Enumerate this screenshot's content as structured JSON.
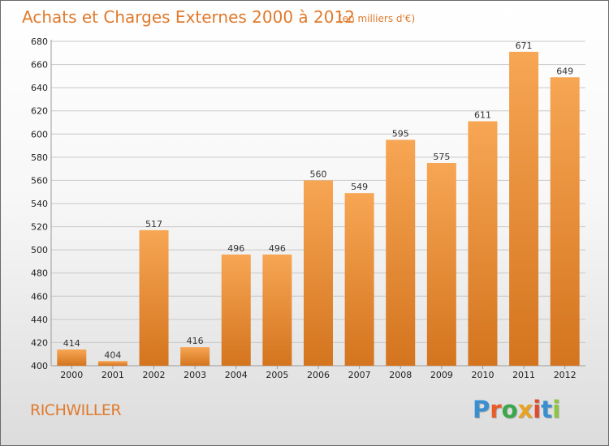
{
  "header": {
    "title": "Achats et Charges Externes 2000 à 2012",
    "subtitle": "(en milliers d'€)"
  },
  "footer": {
    "location": "RICHWILLER",
    "brand_letters": [
      "P",
      "r",
      "o",
      "x",
      "i",
      "t",
      "i"
    ],
    "brand_colors": [
      "#3a8fd1",
      "#e85c2a",
      "#3aa84a",
      "#e8a323",
      "#e04b2c",
      "#3a8fd1",
      "#8cc63f"
    ]
  },
  "colors": {
    "accent": "#e07a2c",
    "bar_top": "#f7a654",
    "bar_bottom": "#d4741e",
    "grid": "#c8c8c8"
  },
  "chart_data": {
    "type": "bar",
    "title": "Achats et Charges Externes 2000 à 2012",
    "subtitle": "(en milliers d'€)",
    "xlabel": "",
    "ylabel": "",
    "categories": [
      "2000",
      "2001",
      "2002",
      "2003",
      "2004",
      "2005",
      "2006",
      "2007",
      "2008",
      "2009",
      "2010",
      "2011",
      "2012"
    ],
    "values": [
      414,
      404,
      517,
      416,
      496,
      496,
      560,
      549,
      595,
      575,
      611,
      671,
      649
    ],
    "ylim": [
      400,
      680
    ],
    "yticks": [
      400,
      420,
      440,
      460,
      480,
      500,
      520,
      540,
      560,
      580,
      600,
      620,
      640,
      660,
      680
    ],
    "grid": true,
    "legend": "none"
  }
}
